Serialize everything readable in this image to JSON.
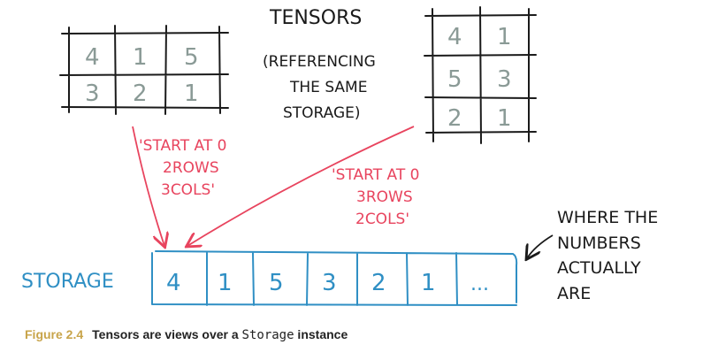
{
  "title_lines": [
    "TENSORS",
    "(REFERENCING",
    "THE SAME",
    "STORAGE)"
  ],
  "tensor_2x3": [
    [
      "4",
      "1",
      "5"
    ],
    [
      "3",
      "2",
      "1"
    ]
  ],
  "tensor_3x2": [
    [
      "4",
      "1"
    ],
    [
      "5",
      "3"
    ],
    [
      "2",
      "1"
    ]
  ],
  "annotation_left": [
    "'START AT 0",
    "2ROWS",
    "3COLS'"
  ],
  "annotation_right": [
    "'START AT 0",
    "3ROWS",
    "2COLS'"
  ],
  "storage_label": "STORAGE",
  "storage_cells": [
    "4",
    "1",
    "5",
    "3",
    "2",
    "1",
    "..."
  ],
  "where_note": [
    "WHERE THE",
    "NUMBERS",
    "ACTUALLY",
    "ARE"
  ],
  "caption": {
    "figure": "Figure 2.4",
    "text_before": "Tensors are views over a ",
    "code": "Storage",
    "text_after": " instance"
  },
  "colors": {
    "ink": "#1a1a1a",
    "grid_numbers": "#8a9a96",
    "annotation": "#e8445e",
    "storage": "#2f8fc4",
    "caption_figure": "#c8a44a"
  }
}
